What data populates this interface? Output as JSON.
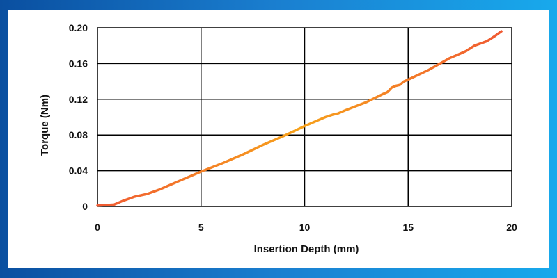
{
  "chart_data": {
    "type": "line",
    "title": "",
    "xlabel": "Insertion Depth (mm)",
    "ylabel": "Torque (Nm)",
    "xlim": [
      0,
      20
    ],
    "ylim": [
      0,
      0.2
    ],
    "x_ticks": [
      0,
      5,
      10,
      15,
      20
    ],
    "x_tick_labels": [
      "0",
      "5",
      "10",
      "15",
      "20"
    ],
    "y_ticks": [
      0,
      0.04,
      0.08,
      0.12,
      0.16,
      0.2
    ],
    "y_tick_labels": [
      "0",
      "0.04",
      "0.08",
      "0.12",
      "0.16",
      "0.20"
    ],
    "grid": true,
    "legend": "none",
    "line_gradient": [
      "#f05a32",
      "#f7a21b",
      "#f05a32"
    ],
    "series": [
      {
        "x": [
          0,
          0.8,
          1.2,
          1.8,
          2.4,
          3.0,
          4.0,
          5.0,
          6.0,
          7.0,
          8.0,
          9.0,
          10.0,
          11.0,
          11.4,
          11.6,
          12.0,
          13.0,
          13.8,
          14.0,
          14.2,
          14.4,
          14.6,
          14.8,
          15.0,
          16.0,
          17.0,
          17.4,
          17.8,
          18.2,
          18.8,
          19.2,
          19.5
        ],
        "y": [
          0.001,
          0.002,
          0.006,
          0.011,
          0.014,
          0.019,
          0.029,
          0.039,
          0.048,
          0.058,
          0.069,
          0.079,
          0.09,
          0.1,
          0.103,
          0.104,
          0.108,
          0.117,
          0.126,
          0.128,
          0.133,
          0.135,
          0.136,
          0.14,
          0.142,
          0.153,
          0.166,
          0.17,
          0.174,
          0.18,
          0.185,
          0.191,
          0.196
        ]
      }
    ]
  }
}
